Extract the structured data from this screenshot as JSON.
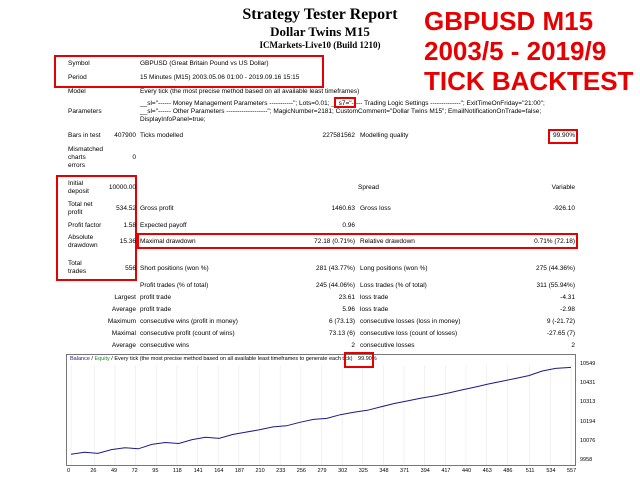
{
  "header": {
    "title": "Strategy Tester Report",
    "subtitle": "Dollar Twins M15",
    "server": "ICMarkets-Live10 (Build 1210)"
  },
  "overlay": {
    "line1": "GBPUSD M15",
    "line2": "2003/5 - 2019/9",
    "line3": "TICK BACKTEST"
  },
  "info": {
    "symbol_label": "Symbol",
    "symbol_value": "GBPUSD (Great Britain Pound vs US Dollar)",
    "period_label": "Period",
    "period_value": "15 Minutes (M15) 2003.05.06 01:00 - 2019.09.16 15:15",
    "model_label": "Model",
    "model_value": "Every tick (the most precise method based on all available least timeframes)",
    "params_label": "Parameters",
    "params_line1": "__sl=\"------ Money Management Parameters -----------\";   Lots=0.01;  __s7=\"----- Trading Logic Settings --------------\"; ExitTimeOnFriday=\"21:00\";",
    "params_line2": "__sl=\"------ Other Parameters -------------------\"; MagicNumber=2181; CustomComment=\"Dollar Twins M15\"; EmailNotificationOnTrade=false;",
    "params_line3": "DisplayInfoPanel=true;"
  },
  "bars": {
    "bars_label": "Bars in test",
    "bars_value": "407900",
    "ticks_label": "Ticks modelled",
    "ticks_value": "227581562",
    "quality_label": "Modelling quality",
    "quality_value": "99.90%",
    "mismatch_label1": "Mismatched",
    "mismatch_label2": "charts",
    "mismatch_label3": "errors",
    "mismatch_value": "0"
  },
  "stats": {
    "initial_label1": "Initial",
    "initial_label2": "deposit",
    "initial_value": "10000.00",
    "spread_label": "Spread",
    "spread_value": "Variable",
    "netprofit_label1": "Total net",
    "netprofit_label2": "profit",
    "netprofit_value": "534.52",
    "grossprofit_label": "Gross profit",
    "grossprofit_value": "1460.63",
    "grossloss_label": "Gross loss",
    "grossloss_value": "-926.10",
    "pf_label": "Profit factor",
    "pf_value": "1.58",
    "expected_label": "Expected payoff",
    "expected_value": "0.96",
    "absdd_label1": "Absolute",
    "absdd_label2": "drawdown",
    "absdd_value": "15.36",
    "maxdd_label": "Maximal drawdown",
    "maxdd_value": "72.18 (0.71%)",
    "reldd_label": "Relative drawdown",
    "reldd_value": "0.71% (72.18)",
    "trades_label1": "Total",
    "trades_label2": "trades",
    "trades_value": "556",
    "short_label": "Short positions (won %)",
    "short_value": "281 (43.77%)",
    "long_label": "Long positions (won %)",
    "long_value": "275 (44.36%)",
    "ptrades_label": "Profit trades (% of total)",
    "ptrades_value": "245 (44.06%)",
    "ltrades_label": "Loss trades (% of total)",
    "ltrades_value": "311 (55.94%)",
    "largest_label": "Largest",
    "lp_label": "profit trade",
    "lp_value": "23.61",
    "ll_label": "loss trade",
    "ll_value": "-4.31",
    "average_label": "Average",
    "ap_label": "profit trade",
    "ap_value": "5.96",
    "al_label": "loss trade",
    "al_value": "-2.98",
    "maximum_label": "Maximum",
    "mcw_label": "consecutive wins (profit in money)",
    "mcw_value": "6 (73.13)",
    "mcl_label": "consecutive losses (loss in money)",
    "mcl_value": "9 (-21.72)",
    "maximal_label": "Maximal",
    "mcp_label": "consecutive profit (count of wins)",
    "mcp_value": "73.13 (6)",
    "mcloss_label": "consecutive loss (count of losses)",
    "mcloss_value": "-27.65 (7)",
    "average2_label": "Average",
    "acw_label": "consecutive wins",
    "acw_value": "2",
    "acl_label": "consecutive losses",
    "acl_value": "2"
  },
  "chart_legend": {
    "balance": "Balance",
    "sep": " / ",
    "equity": "Equity",
    "rest": " / Every tick (the most precise method based on all available least timeframes to generate each tick)",
    "quality": "99.90%"
  },
  "colors": {
    "accent_red": "#e60000",
    "balance_line": "#1a1a8c"
  },
  "chart_data": {
    "type": "line",
    "title": "",
    "xlabel": "",
    "ylabel": "",
    "x_ticks": [
      "0",
      "26",
      "49",
      "72",
      "95",
      "118",
      "141",
      "164",
      "187",
      "210",
      "233",
      "256",
      "279",
      "302",
      "325",
      "348",
      "371",
      "394",
      "417",
      "440",
      "463",
      "486",
      "511",
      "534",
      "557"
    ],
    "y_ticks": [
      "10549",
      "10431",
      "10313",
      "10194",
      "10076",
      "9958"
    ],
    "ylim": [
      9958,
      10549
    ],
    "xlim": [
      0,
      557
    ],
    "series": [
      {
        "x": [
          0,
          15,
          30,
          45,
          60,
          75,
          90,
          105,
          120,
          135,
          150,
          165,
          180,
          195,
          210,
          225,
          240,
          255,
          270,
          285,
          300,
          315,
          330,
          345,
          360,
          375,
          390,
          405,
          420,
          435,
          450,
          465,
          480,
          495,
          510,
          525,
          540,
          557
        ],
        "y": [
          10000,
          10012,
          10005,
          10028,
          10040,
          10033,
          10060,
          10072,
          10066,
          10090,
          10104,
          10097,
          10121,
          10136,
          10150,
          10168,
          10175,
          10196,
          10214,
          10220,
          10243,
          10258,
          10270,
          10291,
          10312,
          10328,
          10345,
          10359,
          10376,
          10395,
          10413,
          10432,
          10449,
          10466,
          10484,
          10512,
          10528,
          10534
        ]
      }
    ]
  }
}
